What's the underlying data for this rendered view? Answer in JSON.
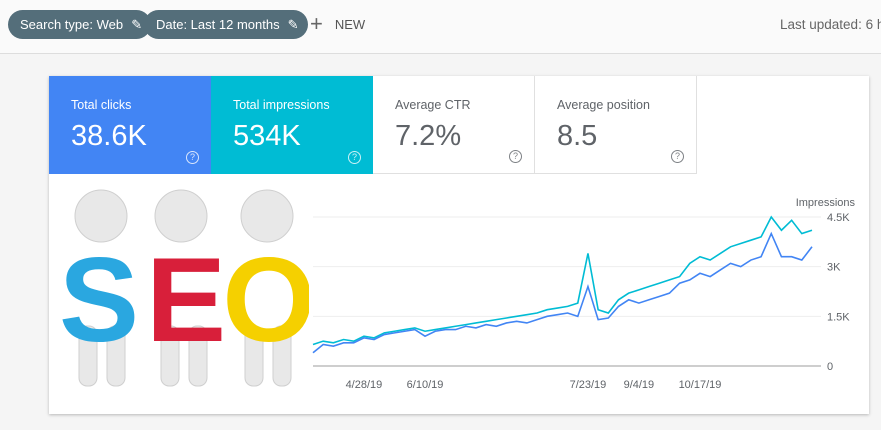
{
  "filters": {
    "search_type": "Search type: Web",
    "date": "Date: Last 12 months",
    "new_label": "NEW"
  },
  "last_updated": "Last updated: 6 h",
  "metrics": [
    {
      "label": "Total clicks",
      "value": "38.6K"
    },
    {
      "label": "Total impressions",
      "value": "534K"
    },
    {
      "label": "Average CTR",
      "value": "7.2%"
    },
    {
      "label": "Average position",
      "value": "8.5"
    }
  ],
  "illustration": {
    "letters": [
      "S",
      "E",
      "O"
    ]
  },
  "colors": {
    "clicks": "#4285f4",
    "impressions": "#00bcd4",
    "chip": "#546e7a"
  },
  "chart_data": {
    "type": "line",
    "ylabel": "Impressions",
    "ylim": [
      0,
      4500
    ],
    "yticks": [
      "0",
      "1.5K",
      "3K",
      "4.5K"
    ],
    "ytick_values": [
      0,
      1500,
      3000,
      4500
    ],
    "xticks": [
      "4/28/19",
      "6/10/19",
      "7/23/19",
      "9/4/19",
      "10/17/19"
    ],
    "xtick_index": [
      5,
      11,
      27,
      32,
      38
    ],
    "series": [
      {
        "name": "Impressions",
        "color": "#00bcd4",
        "values": [
          650,
          750,
          700,
          800,
          750,
          900,
          850,
          1000,
          1050,
          1100,
          1150,
          1050,
          1100,
          1150,
          1200,
          1250,
          1300,
          1350,
          1400,
          1450,
          1500,
          1550,
          1600,
          1700,
          1750,
          1800,
          1900,
          3400,
          1700,
          1600,
          2000,
          2200,
          2300,
          2400,
          2500,
          2600,
          2700,
          3100,
          3300,
          3200,
          3400,
          3600,
          3700,
          3800,
          3900,
          4500,
          4100,
          4400,
          4000,
          4100
        ]
      },
      {
        "name": "Clicks",
        "color": "#4285f4",
        "values": [
          400,
          650,
          600,
          700,
          700,
          850,
          800,
          950,
          1000,
          1050,
          1100,
          900,
          1050,
          1100,
          1100,
          1200,
          1150,
          1250,
          1200,
          1300,
          1350,
          1300,
          1400,
          1500,
          1550,
          1600,
          1500,
          2400,
          1400,
          1450,
          1800,
          2000,
          1900,
          2000,
          2100,
          2200,
          2500,
          2600,
          2800,
          2700,
          2900,
          3100,
          3000,
          3200,
          3300,
          4000,
          3300,
          3300,
          3200,
          3600
        ]
      }
    ]
  }
}
